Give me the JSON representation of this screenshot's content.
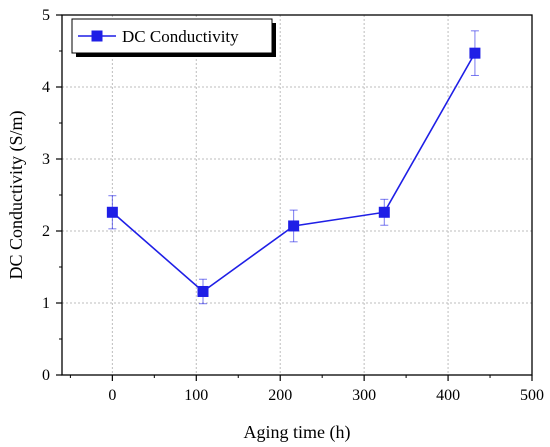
{
  "chart_data": {
    "type": "line",
    "xlabel": "Aging time (h)",
    "ylabel": "DC Conductivity (S/m)",
    "xlim": [
      -60,
      500
    ],
    "ylim": [
      0,
      5
    ],
    "x_ticks": [
      0,
      100,
      200,
      300,
      400,
      500
    ],
    "y_ticks": [
      0,
      1,
      2,
      3,
      4,
      5
    ],
    "grid": true,
    "legend_position": "top-left",
    "colors": {
      "series": "#1f1fe6",
      "axis": "#000000",
      "grid": "#bdbdbd"
    },
    "series": [
      {
        "name": "DC Conductivity",
        "marker": "square",
        "points": [
          {
            "x": 0,
            "y": 2.26,
            "err": 0.23
          },
          {
            "x": 108,
            "y": 1.16,
            "err": 0.17
          },
          {
            "x": 216,
            "y": 2.07,
            "err": 0.22
          },
          {
            "x": 324,
            "y": 2.26,
            "err": 0.18
          },
          {
            "x": 432,
            "y": 4.47,
            "err": 0.31
          }
        ]
      }
    ]
  }
}
